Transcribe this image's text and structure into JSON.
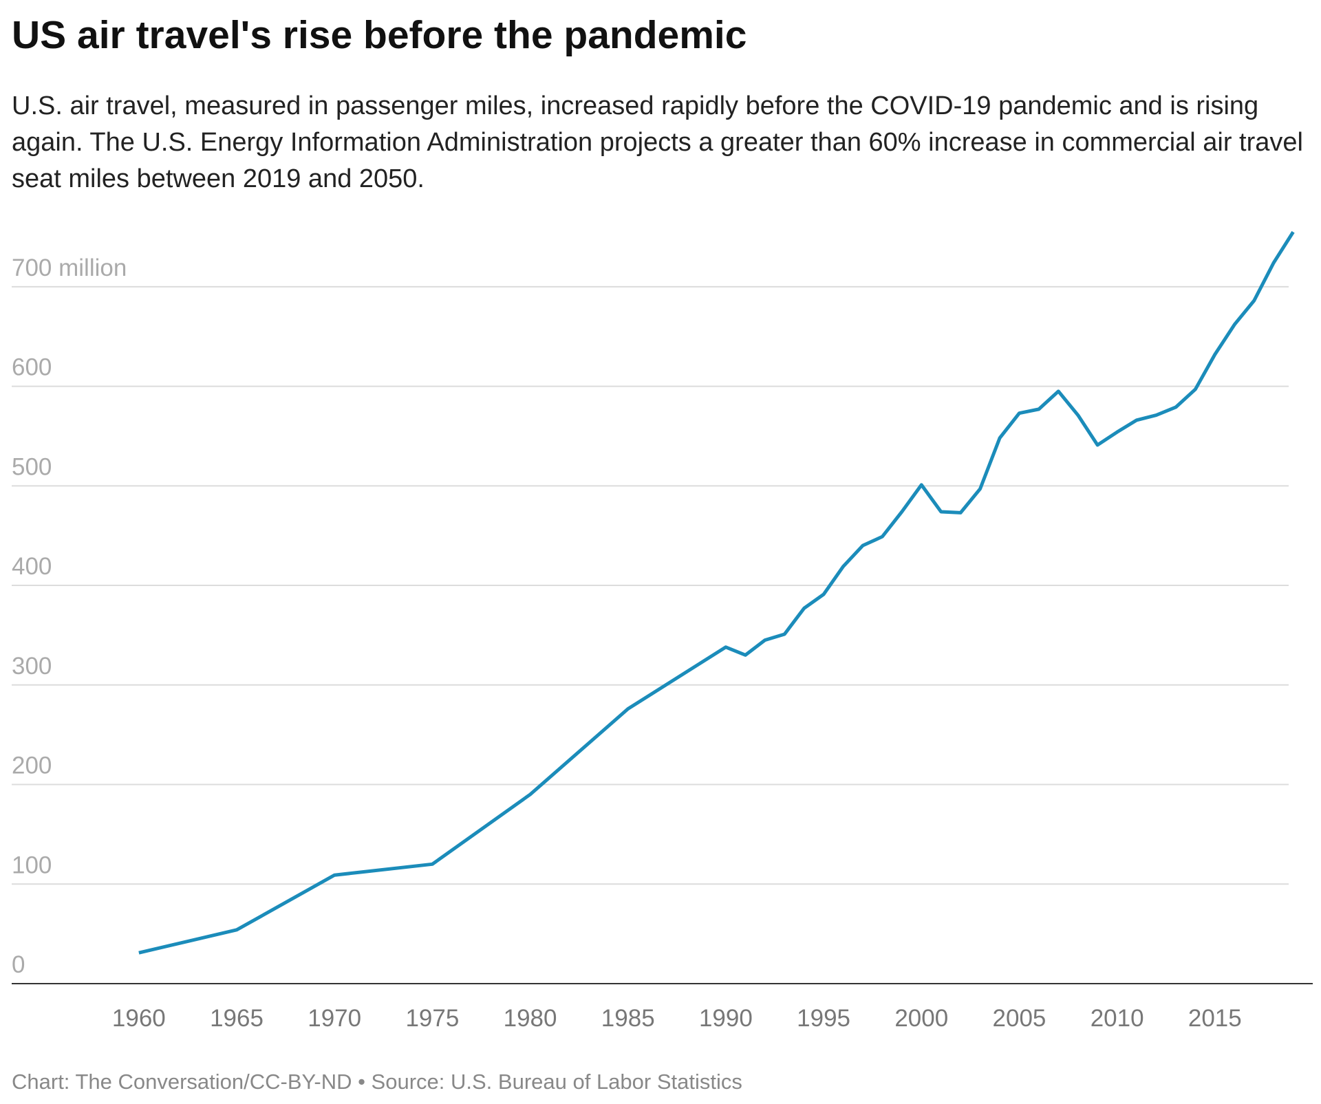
{
  "chart_data": {
    "type": "line",
    "title": "US air travel's rise before the pandemic",
    "subtitle": "U.S. air travel, measured in passenger miles, increased rapidly before the COVID-19 pandemic and is rising again. The U.S. Energy Information Administration projects a greater than 60% increase in commercial air travel seat miles between 2019 and 2050.",
    "source": "Chart: The Conversation/CC-BY-ND • Source: U.S. Bureau of Labor Statistics",
    "x": [
      1960,
      1965,
      1970,
      1975,
      1980,
      1985,
      1990,
      1991,
      1992,
      1993,
      1994,
      1995,
      1996,
      1997,
      1998,
      1999,
      2000,
      2001,
      2002,
      2003,
      2004,
      2005,
      2006,
      2007,
      2008,
      2009,
      2010,
      2011,
      2012,
      2013,
      2014,
      2015,
      2016,
      2017,
      2018,
      2019
    ],
    "series": [
      {
        "name": "Passenger miles",
        "color": "#1b8cba",
        "values": [
          31,
          54,
          109,
          120,
          190,
          276,
          338,
          330,
          345,
          351,
          377,
          391,
          419,
          440,
          449,
          474,
          501,
          474,
          473,
          497,
          548,
          573,
          577,
          595,
          571,
          541,
          554,
          566,
          571,
          579,
          597,
          632,
          662,
          686,
          724,
          755
        ]
      }
    ],
    "xlim": [
      1953.5,
      2020
    ],
    "xticks": [
      1960,
      1965,
      1970,
      1975,
      1980,
      1985,
      1990,
      1995,
      2000,
      2005,
      2010,
      2015
    ],
    "ylim": [
      0,
      760
    ],
    "yticks": [
      0,
      100,
      200,
      300,
      400,
      500,
      600,
      {
        "value": 700,
        "label": "700 million"
      }
    ],
    "grid": true
  }
}
